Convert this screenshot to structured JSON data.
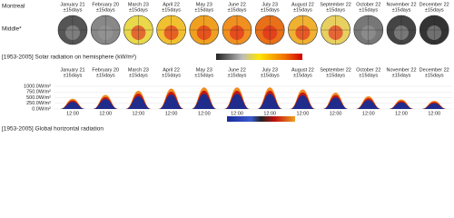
{
  "location": "Montreal",
  "row_label": "Middle*",
  "months": [
    {
      "date": "January 21",
      "window": "±15days"
    },
    {
      "date": "February 20",
      "window": "±15days"
    },
    {
      "date": "March 23",
      "window": "±15days"
    },
    {
      "date": "April 22",
      "window": "±15days"
    },
    {
      "date": "May 23",
      "window": "±15days"
    },
    {
      "date": "June 22",
      "window": "±15days"
    },
    {
      "date": "July 23",
      "window": "±15days"
    },
    {
      "date": "August 22",
      "window": "±15days"
    },
    {
      "date": "September 22",
      "window": "±15days"
    },
    {
      "date": "October 22",
      "window": "±15days"
    },
    {
      "date": "November 22",
      "window": "±15days"
    },
    {
      "date": "December 22",
      "window": "±15days"
    }
  ],
  "hemisphere_title": "[1953-2005] Solar radiation on hemisphere (kW/m²)",
  "chart_data": {
    "type": "area",
    "title": "[1953-2005] Global horizontal radiation",
    "x_label": "12:00",
    "ylim": [
      0,
      1000
    ],
    "yticks": [
      {
        "value": 0,
        "label": "0.0W/m²"
      },
      {
        "value": 250,
        "label": "250.0W/m²"
      },
      {
        "value": 500,
        "label": "500.0W/m²"
      },
      {
        "value": 750,
        "label": "750.0W/m²"
      },
      {
        "value": 1000,
        "label": "1000.0W/m²"
      }
    ],
    "values": [
      450,
      620,
      800,
      900,
      950,
      950,
      950,
      860,
      720,
      560,
      420,
      360
    ],
    "color": "#f28a1c"
  }
}
